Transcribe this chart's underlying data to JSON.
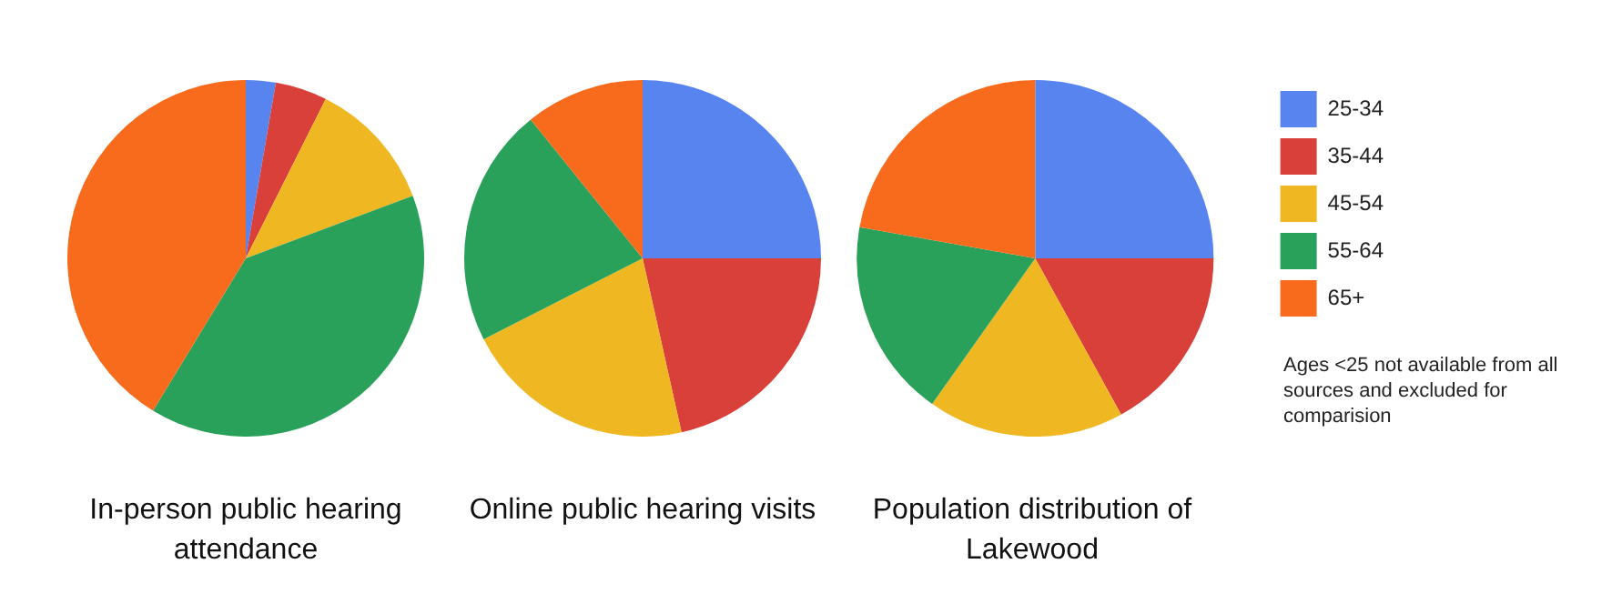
{
  "chart_data": [
    {
      "type": "pie",
      "title": "In-person public hearing attendance",
      "categories": [
        null,
        null,
        null,
        null,
        null
      ],
      "values": [
        2.7,
        4.7,
        11.9,
        39.4,
        41.3
      ],
      "colors": [
        "#5884f0",
        "#d9403a",
        "#efb822",
        "#2aa15a",
        "#f86b1c"
      ],
      "legend": false
    },
    {
      "type": "pie",
      "title": "Online public hearing visits",
      "categories": [
        null,
        null,
        null,
        null,
        null
      ],
      "values": [
        25,
        21.5,
        21,
        21.7,
        10.8
      ],
      "colors": [
        "#5884f0",
        "#d9403a",
        "#efb822",
        "#2aa15a",
        "#f86b1c"
      ],
      "legend": false
    },
    {
      "type": "pie",
      "title": "Population distribution of Lakewood",
      "categories": [
        "25-34",
        "35-44",
        "45-54",
        "55-64",
        "65+"
      ],
      "values": [
        25,
        17,
        17.8,
        18,
        22.2
      ],
      "colors": [
        "#5884f0",
        "#d9403a",
        "#efb822",
        "#2aa15a",
        "#f86b1c"
      ],
      "legend": "right",
      "annotations": [
        "Ages <25 not available from all sources and excluded for comparision"
      ]
    }
  ]
}
